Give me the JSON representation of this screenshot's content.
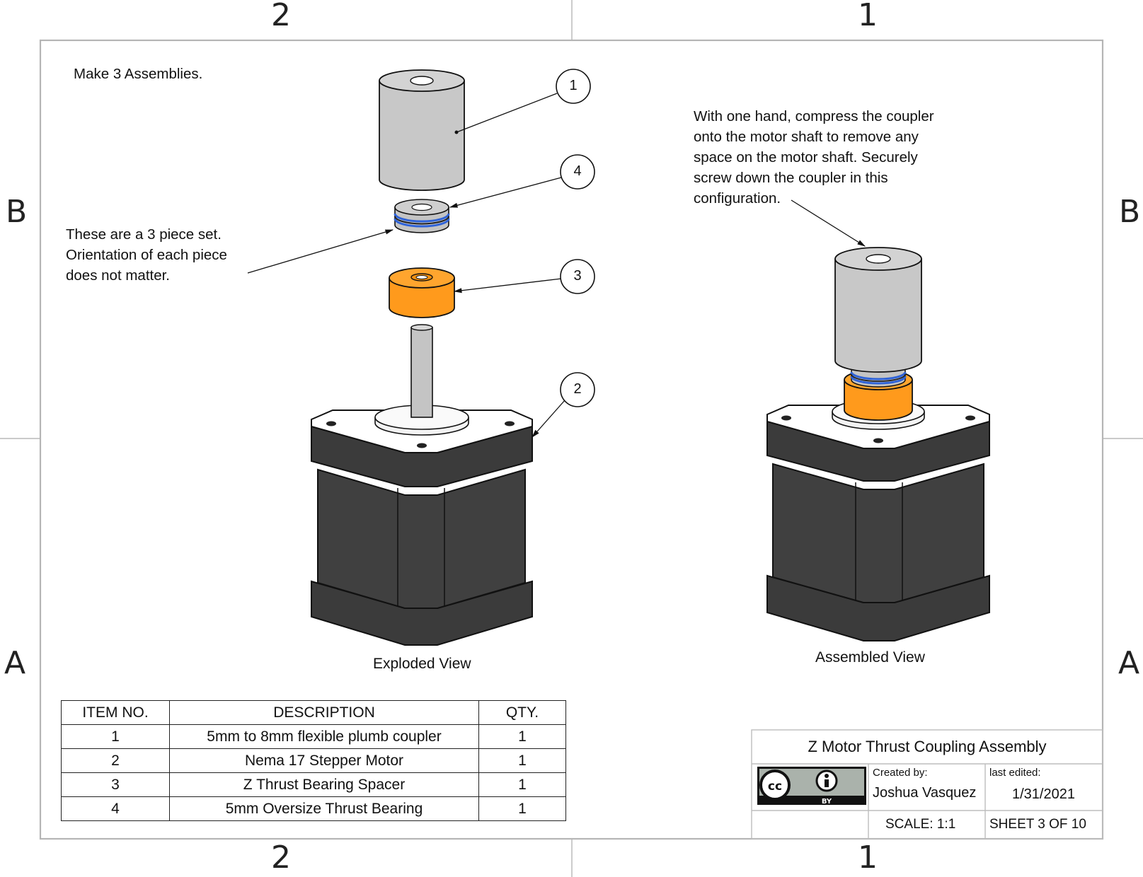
{
  "zones": {
    "top": [
      "2",
      "1"
    ],
    "bottom": [
      "2",
      "1"
    ],
    "left": [
      "B",
      "A"
    ],
    "right": [
      "B",
      "A"
    ]
  },
  "notes": {
    "make_count": "Make 3 Assemblies.",
    "bearing_note": "These are a 3 piece set.\nOrientation of each piece\ndoes not matter.",
    "assembly_note": "With one hand, compress the coupler\nonto the motor shaft to remove any\nspace on the motor shaft. Securely\nscrew down the coupler in this\nconfiguration."
  },
  "balloons": [
    "1",
    "4",
    "3",
    "2"
  ],
  "views": {
    "exploded": "Exploded View",
    "assembled": "Assembled View"
  },
  "bom": {
    "headers": [
      "ITEM NO.",
      "DESCRIPTION",
      "QTY."
    ],
    "rows": [
      [
        "1",
        "5mm to 8mm flexible plumb coupler",
        "1"
      ],
      [
        "2",
        "Nema 17 Stepper Motor",
        "1"
      ],
      [
        "3",
        "Z Thrust Bearing Spacer",
        "1"
      ],
      [
        "4",
        "5mm Oversize Thrust Bearing",
        "1"
      ]
    ]
  },
  "title_block": {
    "title": "Z Motor Thrust Coupling Assembly",
    "created_label": "Created by:",
    "author": "Joshua Vasquez",
    "edited_label": "last edited:",
    "date": "1/31/2021",
    "scale": "SCALE: 1:1",
    "sheet": "SHEET 3 OF 10",
    "license_logo": {
      "cc": "cc",
      "by": "BY"
    }
  },
  "colors": {
    "motor_dark": "#3d3d3d",
    "coupler_gray": "#c8c8c8",
    "spacer_orange": "#ff9a1c",
    "bearing_blue": "#2f63d8",
    "line": "#111111"
  }
}
